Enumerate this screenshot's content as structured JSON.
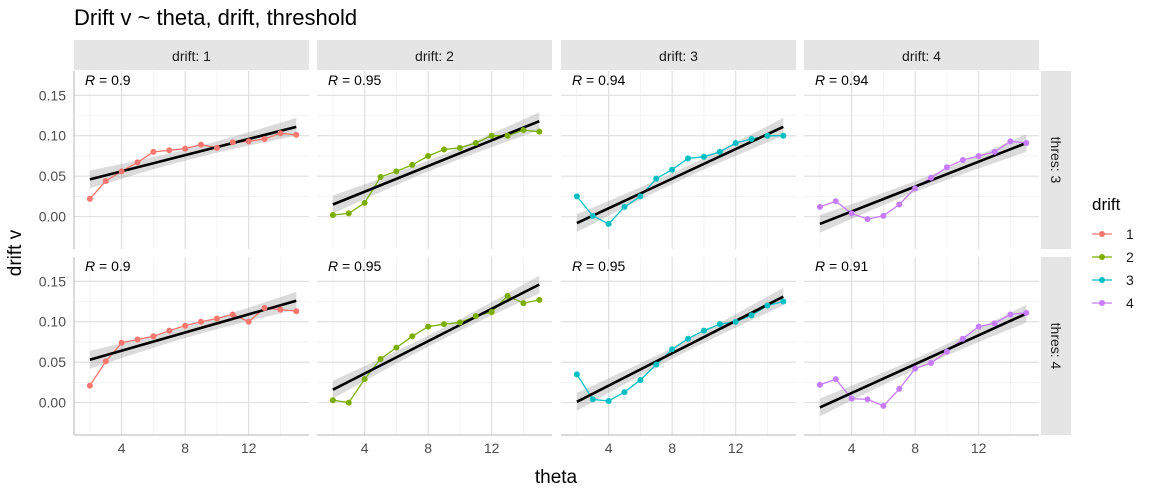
{
  "chart_data": {
    "type": "line",
    "title": "Drift v ~ theta, drift, threshold",
    "xlabel": "theta",
    "ylabel": "drift v",
    "x": [
      2,
      3,
      4,
      5,
      6,
      7,
      8,
      9,
      10,
      11,
      12,
      13,
      14,
      15
    ],
    "xlim": [
      1,
      15.8
    ],
    "ylim": [
      -0.04,
      0.18
    ],
    "xticks": [
      "4",
      "8",
      "12"
    ],
    "xtick_values": [
      4,
      8,
      12
    ],
    "yticks": [
      "0.00",
      "0.05",
      "0.10",
      "0.15"
    ],
    "ytick_values": [
      0,
      0.05,
      0.1,
      0.15
    ],
    "grid": true,
    "legend": {
      "title": "drift",
      "position": "right",
      "entries": [
        "1",
        "2",
        "3",
        "4"
      ]
    },
    "colors": {
      "1": "#F8766D",
      "2": "#7CAE00",
      "3": "#00BFC4",
      "4": "#C77CFF",
      "fit": "#000000",
      "ribbon": "#999999",
      "strip": "#E5E5E5"
    },
    "col_strips": [
      "drift: 1",
      "drift: 2",
      "drift: 3",
      "drift: 4"
    ],
    "row_strips": [
      "thres: 3",
      "thres: 4"
    ],
    "panels": [
      {
        "drift": "1",
        "row": 0,
        "col": 0,
        "r_label": "R",
        "r_value": "0.9",
        "y": [
          0.022,
          0.044,
          0.056,
          0.067,
          0.08,
          0.082,
          0.084,
          0.089,
          0.085,
          0.092,
          0.093,
          0.096,
          0.103,
          0.101
        ],
        "fit": [
          0.046,
          0.111
        ]
      },
      {
        "drift": "2",
        "row": 0,
        "col": 1,
        "r_label": "R",
        "r_value": "0.95",
        "y": [
          0.002,
          0.004,
          0.017,
          0.049,
          0.056,
          0.064,
          0.075,
          0.083,
          0.085,
          0.091,
          0.1,
          0.1,
          0.107,
          0.105
        ],
        "fit": [
          0.015,
          0.118
        ]
      },
      {
        "drift": "3",
        "row": 0,
        "col": 2,
        "r_label": "R",
        "r_value": "0.94",
        "y": [
          0.025,
          0.001,
          -0.009,
          0.012,
          0.025,
          0.047,
          0.058,
          0.072,
          0.074,
          0.08,
          0.091,
          0.096,
          0.1,
          0.1
        ],
        "fit": [
          -0.008,
          0.111
        ]
      },
      {
        "drift": "4",
        "row": 0,
        "col": 3,
        "r_label": "R",
        "r_value": "0.94",
        "y": [
          0.012,
          0.019,
          0.004,
          -0.003,
          0.001,
          0.015,
          0.035,
          0.048,
          0.061,
          0.07,
          0.075,
          0.08,
          0.093,
          0.091
        ],
        "fit": [
          -0.009,
          0.091
        ]
      },
      {
        "drift": "1",
        "row": 1,
        "col": 0,
        "r_label": "R",
        "r_value": "0.9",
        "y": [
          0.021,
          0.051,
          0.074,
          0.078,
          0.082,
          0.089,
          0.095,
          0.1,
          0.104,
          0.109,
          0.1,
          0.117,
          0.115,
          0.113
        ],
        "fit": [
          0.053,
          0.126
        ]
      },
      {
        "drift": "2",
        "row": 1,
        "col": 1,
        "r_label": "R",
        "r_value": "0.95",
        "y": [
          0.003,
          0.0,
          0.029,
          0.054,
          0.068,
          0.082,
          0.094,
          0.097,
          0.099,
          0.107,
          0.112,
          0.132,
          0.123,
          0.127
        ],
        "fit": [
          0.016,
          0.146
        ]
      },
      {
        "drift": "3",
        "row": 1,
        "col": 2,
        "r_label": "R",
        "r_value": "0.95",
        "y": [
          0.035,
          0.004,
          0.002,
          0.013,
          0.028,
          0.047,
          0.066,
          0.079,
          0.089,
          0.097,
          0.1,
          0.108,
          0.12,
          0.125
        ],
        "fit": [
          0.001,
          0.131
        ]
      },
      {
        "drift": "4",
        "row": 1,
        "col": 3,
        "r_label": "R",
        "r_value": "0.91",
        "y": [
          0.022,
          0.029,
          0.005,
          0.004,
          -0.004,
          0.017,
          0.042,
          0.049,
          0.063,
          0.079,
          0.094,
          0.098,
          0.109,
          0.111
        ],
        "fit": [
          -0.006,
          0.11
        ]
      }
    ]
  }
}
